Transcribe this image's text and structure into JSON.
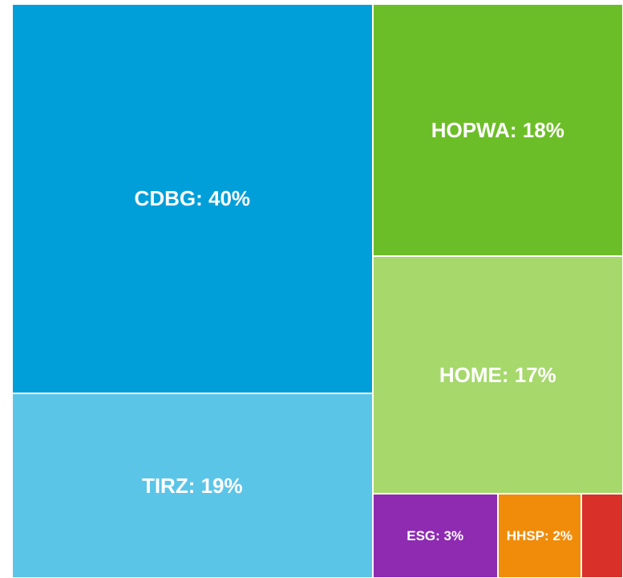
{
  "chart_data": {
    "type": "treemap",
    "categories": [
      "CDBG",
      "TIRZ",
      "HOPWA",
      "HOME",
      "ESG",
      "HHSP",
      null
    ],
    "values": [
      40,
      19,
      18,
      17,
      3,
      2,
      1
    ],
    "value_labels": [
      "CDBG: 40%",
      "TIRZ: 19%",
      "HOPWA: 18%",
      "HOME: 17%",
      "ESG: 3%",
      "HHSP: 2%",
      null
    ],
    "colors": [
      "#009fda",
      "#5bc5e8",
      "#6cbe28",
      "#a6d86c",
      "#8e2bb1",
      "#f08c0a",
      "#d9302a"
    ]
  }
}
